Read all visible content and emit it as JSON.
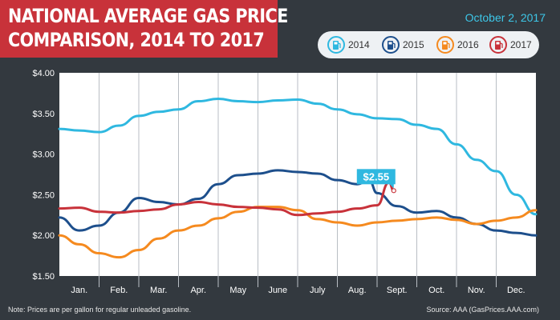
{
  "header": {
    "title_line1": "NATIONAL AVERAGE GAS PRICE",
    "title_line2": "COMPARISON, 2014 TO 2017",
    "date": "October 2, 2017"
  },
  "footer": {
    "note": "Note: Prices are per gallon for regular unleaded gasoline.",
    "source": "Source: AAA (GasPrices.AAA.com)"
  },
  "legend": {
    "items": [
      {
        "label": "2014",
        "icon": "gas-pump-icon",
        "color": "#2fb8e0"
      },
      {
        "label": "2015",
        "icon": "gas-pump-icon",
        "color": "#1d4f8c"
      },
      {
        "label": "2016",
        "icon": "gas-pump-icon",
        "color": "#f58a1f"
      },
      {
        "label": "2017",
        "icon": "gas-pump-icon",
        "color": "#c8323a"
      }
    ]
  },
  "chart_data": {
    "type": "line",
    "title": "NATIONAL AVERAGE GAS PRICE COMPARISON, 2014 TO 2017",
    "xlabel": "",
    "ylabel": "",
    "categories": [
      "Jan.",
      "Feb.",
      "Mar.",
      "Apr.",
      "May",
      "June",
      "July",
      "Aug.",
      "Sept.",
      "Oct.",
      "Nov.",
      "Dec."
    ],
    "x_range": [
      0,
      12
    ],
    "ylim": [
      1.5,
      4.0
    ],
    "yticks": [
      1.5,
      2.0,
      2.5,
      3.0,
      3.5,
      4.0
    ],
    "ytick_labels": [
      "$1.50",
      "$2.00",
      "$2.50",
      "$3.00",
      "$3.50",
      "$4.00"
    ],
    "grid": "vertical",
    "legend_position": "top-right",
    "annotation": {
      "text": "$2.55",
      "series": "2017",
      "x": 8.42,
      "y": 2.55
    },
    "series": [
      {
        "name": "2014",
        "color": "#2fb8e0",
        "x": [
          0,
          0.5,
          1.0,
          1.5,
          2.0,
          2.5,
          3.0,
          3.5,
          4.0,
          4.5,
          5.0,
          5.5,
          6.0,
          6.5,
          7.0,
          7.5,
          8.0,
          8.5,
          9.0,
          9.5,
          10.0,
          10.5,
          11.0,
          11.5,
          12.0
        ],
        "values": [
          3.31,
          3.29,
          3.27,
          3.35,
          3.47,
          3.52,
          3.55,
          3.65,
          3.68,
          3.65,
          3.64,
          3.66,
          3.67,
          3.62,
          3.55,
          3.49,
          3.44,
          3.43,
          3.36,
          3.31,
          3.12,
          2.93,
          2.79,
          2.5,
          2.26
        ]
      },
      {
        "name": "2015",
        "color": "#1d4f8c",
        "x": [
          0,
          0.5,
          1.0,
          1.5,
          2.0,
          2.5,
          3.0,
          3.5,
          4.0,
          4.5,
          5.0,
          5.5,
          6.0,
          6.5,
          7.0,
          7.5,
          7.8,
          8.0,
          8.5,
          9.0,
          9.5,
          10.0,
          10.5,
          11.0,
          11.5,
          12.0
        ],
        "values": [
          2.22,
          2.06,
          2.12,
          2.28,
          2.46,
          2.41,
          2.38,
          2.45,
          2.63,
          2.74,
          2.76,
          2.8,
          2.78,
          2.76,
          2.68,
          2.63,
          2.68,
          2.52,
          2.36,
          2.28,
          2.3,
          2.22,
          2.14,
          2.06,
          2.03,
          2.0
        ]
      },
      {
        "name": "2016",
        "color": "#f58a1f",
        "x": [
          0,
          0.5,
          1.0,
          1.5,
          2.0,
          2.5,
          3.0,
          3.5,
          4.0,
          4.5,
          5.0,
          5.5,
          6.0,
          6.5,
          7.0,
          7.5,
          8.0,
          8.5,
          9.0,
          9.5,
          10.0,
          10.5,
          11.0,
          11.5,
          12.0
        ],
        "values": [
          2.0,
          1.89,
          1.78,
          1.73,
          1.82,
          1.96,
          2.06,
          2.12,
          2.21,
          2.29,
          2.35,
          2.35,
          2.31,
          2.2,
          2.16,
          2.12,
          2.16,
          2.18,
          2.2,
          2.22,
          2.19,
          2.14,
          2.18,
          2.22,
          2.31
        ]
      },
      {
        "name": "2017",
        "color": "#c8323a",
        "x": [
          0,
          0.5,
          1.0,
          1.5,
          2.0,
          2.5,
          3.0,
          3.5,
          4.0,
          4.5,
          5.0,
          5.5,
          6.0,
          6.5,
          7.0,
          7.5,
          8.0,
          8.3,
          8.42
        ],
        "values": [
          2.33,
          2.34,
          2.29,
          2.28,
          2.3,
          2.32,
          2.38,
          2.41,
          2.38,
          2.35,
          2.34,
          2.32,
          2.25,
          2.27,
          2.29,
          2.33,
          2.37,
          2.65,
          2.55
        ]
      }
    ]
  }
}
